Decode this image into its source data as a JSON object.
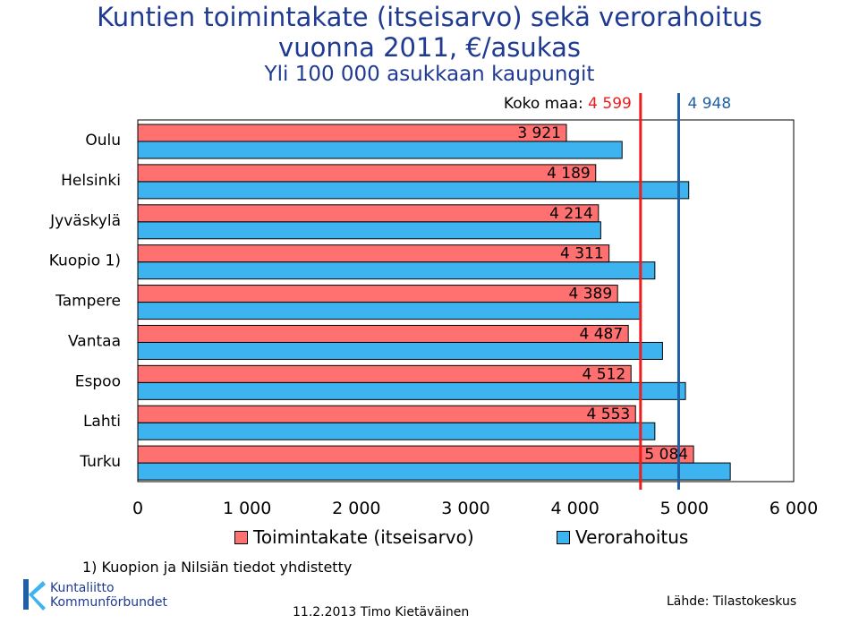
{
  "header": {
    "title_line1": "Kuntien toimintakate (itseisarvo) sekä verorahoitus",
    "title_line2": "vuonna 2011, €/asukas",
    "subtitle": "Yli 100 000 asukkaan kaupungit"
  },
  "chart_data": {
    "type": "bar",
    "orientation": "horizontal",
    "categories": [
      "Oulu",
      "Helsinki",
      "Jyväskylä",
      "Kuopio 1)",
      "Tampere",
      "Vantaa",
      "Espoo",
      "Lahti",
      "Turku"
    ],
    "series": [
      {
        "name": "Toimintakate (itseisarvo)",
        "color": "#ff7070",
        "values": [
          3921,
          4189,
          4214,
          4311,
          4389,
          4487,
          4512,
          4553,
          5084
        ],
        "labels": [
          "3 921",
          "4 189",
          "4 214",
          "4 311",
          "4 389",
          "4 487",
          "4 512",
          "4 553",
          "5 084"
        ]
      },
      {
        "name": "Verorahoitus",
        "color": "#3db4ef",
        "values": [
          4430,
          5040,
          4235,
          4730,
          4600,
          4800,
          5010,
          4730,
          5420
        ]
      }
    ],
    "xlim": [
      0,
      6000
    ],
    "xticks": [
      0,
      1000,
      2000,
      3000,
      4000,
      5000,
      6000
    ],
    "xtick_labels": [
      "0",
      "1 000",
      "2 000",
      "3 000",
      "4 000",
      "5 000",
      "6 000"
    ],
    "reference_lines": [
      {
        "value": 4599,
        "color": "#ee1c1c",
        "prefix": "Koko maa: ",
        "label": "4 599"
      },
      {
        "value": 4948,
        "color": "#1f5fa6",
        "prefix": "",
        "label": "4 948"
      }
    ],
    "grid": false,
    "legend_position": "bottom"
  },
  "footnote": "1) Kuopion ja Nilsiän tiedot yhdistetty",
  "footer": {
    "date_author": "11.2.2013 Timo Kietäväinen",
    "source": "Lähde: Tilastokeskus",
    "logo_line1": "Kuntaliitto",
    "logo_line2": "Kommunförbundet"
  }
}
